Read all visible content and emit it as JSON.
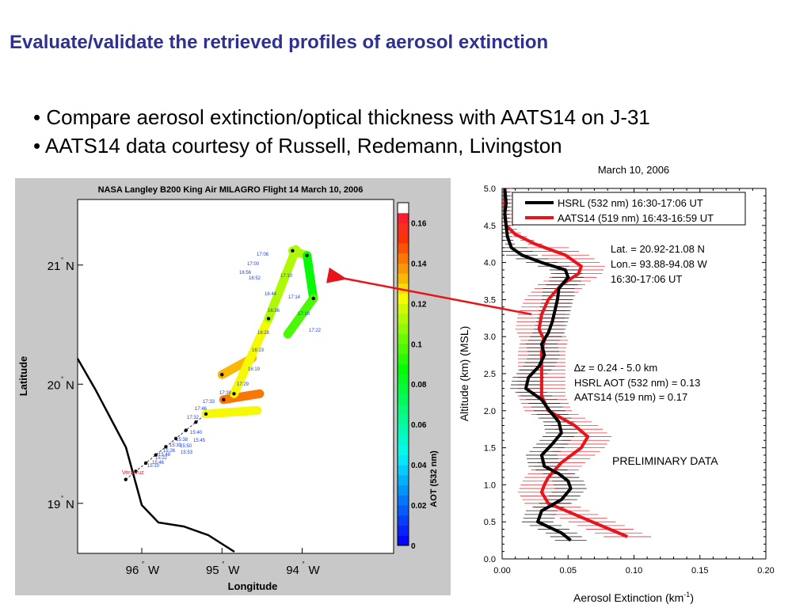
{
  "slide": {
    "title": "Evaluate/validate the retrieved profiles of aerosol extinction",
    "bullets": [
      "• Compare aerosol extinction/optical thickness with AATS14 on J-31",
      "• AATS14 data courtesy of Russell, Redemann, Livingston"
    ]
  },
  "colors": {
    "title": "#2e3192",
    "hsrl": "#000000",
    "aats14": "#e8141c",
    "arrow": "#e8141c",
    "track_label": "#1f3fe0"
  },
  "chart_data": [
    {
      "type": "scatter",
      "title": "NASA Langley B200 King Air MILAGRO Flight 14 March 10, 2006",
      "xlabel": "Longitude",
      "ylabel": "Latitude",
      "xticks": [
        {
          "label": "96",
          "suffix": "W",
          "value": -96
        },
        {
          "label": "95",
          "suffix": "W",
          "value": -95
        },
        {
          "label": "94",
          "suffix": "W",
          "value": -94
        }
      ],
      "yticks": [
        {
          "label": "21",
          "suffix": "N",
          "value": 21
        },
        {
          "label": "20",
          "suffix": "N",
          "value": 20
        },
        {
          "label": "19",
          "suffix": "N",
          "value": 19
        }
      ],
      "colorbar": {
        "label": "AOT (532 nm)",
        "ticks": [
          "0.16",
          "0.14",
          "0.12",
          "0.1",
          "0.08",
          "0.06",
          "0.04",
          "0.02",
          "0"
        ]
      },
      "track_labels": [
        "Veracruz",
        "15:10",
        "15:22",
        "15:26",
        "15:30",
        "15:38",
        "15:40",
        "15:45",
        "15:46",
        "15:48",
        "15:50",
        "15:53",
        "17:32",
        "17:46",
        "17:33",
        "17:38",
        "17:29",
        "16:19",
        "16:23",
        "16:28",
        "16:36",
        "16:44",
        "16:52",
        "16:56",
        "17:00",
        "17:06",
        "17:10",
        "17:14",
        "17:18",
        "17:22"
      ],
      "segments": [
        {
          "from": [
            -95.0,
            20.08
          ],
          "to": [
            -94.62,
            20.22
          ],
          "aot": 0.13
        },
        {
          "from": [
            -95.2,
            19.75
          ],
          "to": [
            -94.56,
            19.78
          ],
          "aot": 0.12
        },
        {
          "from": [
            -94.98,
            19.87
          ],
          "to": [
            -94.53,
            19.92
          ],
          "aot": 0.14
        },
        {
          "from": [
            -94.85,
            19.92
          ],
          "to": [
            -94.42,
            20.55
          ],
          "aot": 0.12
        },
        {
          "from": [
            -94.42,
            20.55
          ],
          "to": [
            -94.08,
            21.13
          ],
          "aot": 0.11
        },
        {
          "from": [
            -94.12,
            21.12
          ],
          "to": [
            -93.94,
            21.08
          ],
          "aot": 0.11
        },
        {
          "from": [
            -93.94,
            21.08
          ],
          "to": [
            -93.86,
            20.72
          ],
          "aot": 0.085
        },
        {
          "from": [
            -93.86,
            20.72
          ],
          "to": [
            -94.18,
            20.42
          ],
          "aot": 0.095
        }
      ]
    },
    {
      "type": "line",
      "title": "March 10, 2006",
      "xlabel": "Aerosol Extinction (km",
      "xlabel_sup": "-1",
      "xlabel_close": ")",
      "ylabel": "Altitude (km) (MSL)",
      "xlim": [
        0,
        0.2
      ],
      "ylim": [
        0,
        5
      ],
      "xticks": [
        "0.00",
        "0.05",
        "0.10",
        "0.15",
        "0.20"
      ],
      "yticks": [
        "0.0",
        "0.5",
        "1.0",
        "1.5",
        "2.0",
        "2.5",
        "3.0",
        "3.5",
        "4.0",
        "4.5",
        "5.0"
      ],
      "grid": false,
      "legend_position": "top-right",
      "series": [
        {
          "name": "HSRL (532 nm) 16:30-17:06 UT",
          "color": "#000000",
          "errbar": 0.012,
          "y": [
            0.25,
            0.35,
            0.5,
            0.65,
            0.8,
            0.95,
            1.05,
            1.15,
            1.25,
            1.4,
            1.55,
            1.7,
            1.85,
            2.0,
            2.15,
            2.3,
            2.45,
            2.6,
            2.75,
            2.9,
            3.05,
            3.2,
            3.35,
            3.5,
            3.65,
            3.8,
            3.9,
            4.0,
            4.1,
            4.2,
            4.35,
            4.5,
            4.65,
            4.8,
            5.0
          ],
          "x": [
            0.052,
            0.045,
            0.027,
            0.03,
            0.045,
            0.052,
            0.05,
            0.043,
            0.032,
            0.03,
            0.038,
            0.045,
            0.043,
            0.036,
            0.03,
            0.018,
            0.02,
            0.028,
            0.032,
            0.03,
            0.035,
            0.038,
            0.04,
            0.042,
            0.043,
            0.05,
            0.048,
            0.03,
            0.015,
            0.007,
            0.004,
            0.003,
            0.002,
            0.003,
            0.002
          ]
        },
        {
          "name": "AATS14 (519 nm) 16:43-16:59 UT",
          "color": "#e8141c",
          "errbar": 0.018,
          "y": [
            0.3,
            0.45,
            0.6,
            0.75,
            0.9,
            1.0,
            1.1,
            1.3,
            1.5,
            1.65,
            1.8,
            2.0,
            2.2,
            2.4,
            2.6,
            2.8,
            2.95,
            3.1,
            3.3,
            3.5,
            3.7,
            3.85,
            3.95,
            4.1,
            4.25,
            4.38,
            4.5,
            4.7,
            5.0
          ],
          "x": [
            0.095,
            0.075,
            0.055,
            0.035,
            0.03,
            0.032,
            0.035,
            0.045,
            0.06,
            0.065,
            0.055,
            0.035,
            0.03,
            0.03,
            0.03,
            0.03,
            0.032,
            0.028,
            0.03,
            0.035,
            0.045,
            0.058,
            0.06,
            0.048,
            0.025,
            0.01,
            0.003,
            0.002,
            0.002
          ]
        }
      ],
      "annotations": {
        "location": [
          "Lat. = 20.92-21.08 N",
          "Lon.= 93.88-94.08 W",
          "16:30-17:06 UT"
        ],
        "delta_symbol": "∆",
        "aot": [
          "z = 0.24 - 5.0 km",
          "HSRL AOT (532 nm) = 0.13",
          "AATS14 (519 nm) = 0.17"
        ],
        "preliminary": "PRELIMINARY DATA"
      }
    }
  ]
}
